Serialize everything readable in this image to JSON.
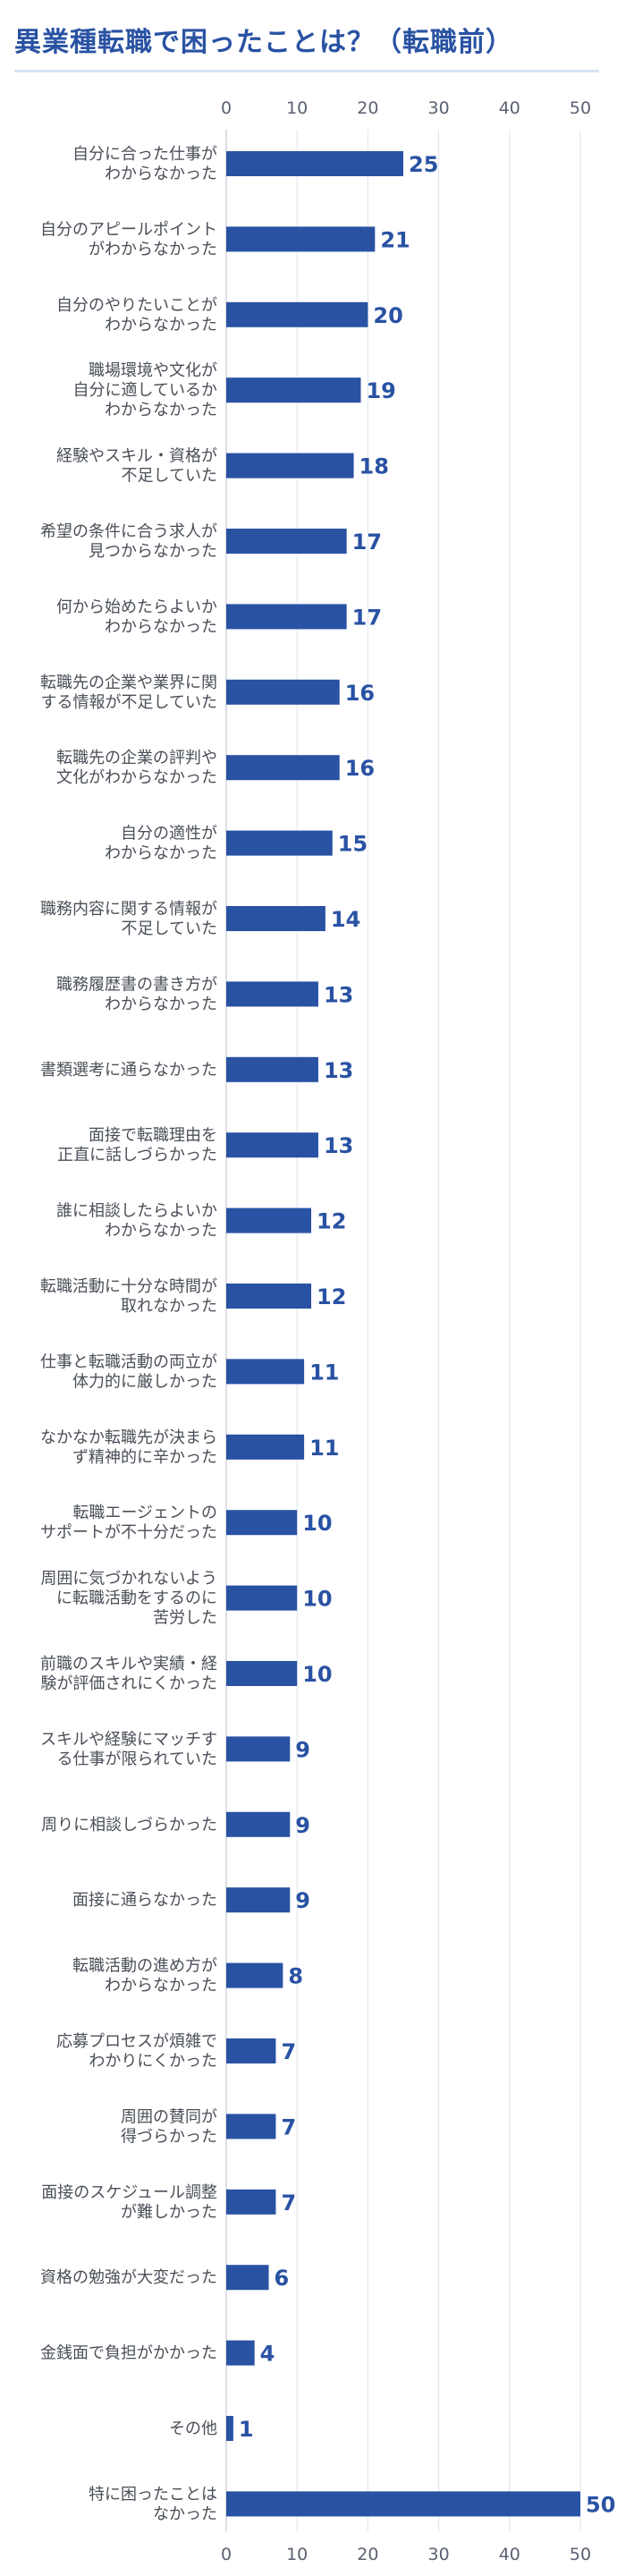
{
  "title": "異業種転職で困ったことは？（転職前）",
  "chart_data": {
    "type": "bar",
    "orientation": "horizontal",
    "xlim": [
      0,
      50
    ],
    "ticks": [
      0,
      10,
      20,
      30,
      40,
      50
    ],
    "grid": true,
    "bar_color": "#2952a3",
    "categories": [
      [
        "自分に合った仕事が",
        "わからなかった"
      ],
      [
        "自分のアピールポイント",
        "がわからなかった"
      ],
      [
        "自分のやりたいことが",
        "わからなかった"
      ],
      [
        "職場環境や文化が",
        "自分に適しているか",
        "わからなかった"
      ],
      [
        "経験やスキル・資格が",
        "不足していた"
      ],
      [
        "希望の条件に合う求人が",
        "見つからなかった"
      ],
      [
        "何から始めたらよいか",
        "わからなかった"
      ],
      [
        "転職先の企業や業界に関",
        "する情報が不足していた"
      ],
      [
        "転職先の企業の評判や",
        "文化がわからなかった"
      ],
      [
        "自分の適性が",
        "わからなかった"
      ],
      [
        "職務内容に関する情報が",
        "不足していた"
      ],
      [
        "職務履歴書の書き方が",
        "わからなかった"
      ],
      [
        "書類選考に通らなかった"
      ],
      [
        "面接で転職理由を",
        "正直に話しづらかった"
      ],
      [
        "誰に相談したらよいか",
        "わからなかった"
      ],
      [
        "転職活動に十分な時間が",
        "取れなかった"
      ],
      [
        "仕事と転職活動の両立が",
        "体力的に厳しかった"
      ],
      [
        "なかなか転職先が決まら",
        "ず精神的に辛かった"
      ],
      [
        "転職エージェントの",
        "サポートが不十分だった"
      ],
      [
        "周囲に気づかれないよう",
        "に転職活動をするのに",
        "苦労した"
      ],
      [
        "前職のスキルや実績・経",
        "験が評価されにくかった"
      ],
      [
        "スキルや経験にマッチす",
        "る仕事が限られていた"
      ],
      [
        "周りに相談しづらかった"
      ],
      [
        "面接に通らなかった"
      ],
      [
        "転職活動の進め方が",
        "わからなかった"
      ],
      [
        "応募プロセスが煩雑で",
        "わかりにくかった"
      ],
      [
        "周囲の賛同が",
        "得づらかった"
      ],
      [
        "面接のスケジュール調整",
        "が難しかった"
      ],
      [
        "資格の勉強が大変だった"
      ],
      [
        "金銭面で負担がかかった"
      ],
      [
        "その他"
      ],
      [
        "特に困ったことは",
        "なかった"
      ]
    ],
    "values": [
      25,
      21,
      20,
      19,
      18,
      17,
      17,
      16,
      16,
      15,
      14,
      13,
      13,
      13,
      12,
      12,
      11,
      11,
      10,
      10,
      10,
      9,
      9,
      9,
      8,
      7,
      7,
      7,
      6,
      4,
      1,
      50
    ]
  }
}
